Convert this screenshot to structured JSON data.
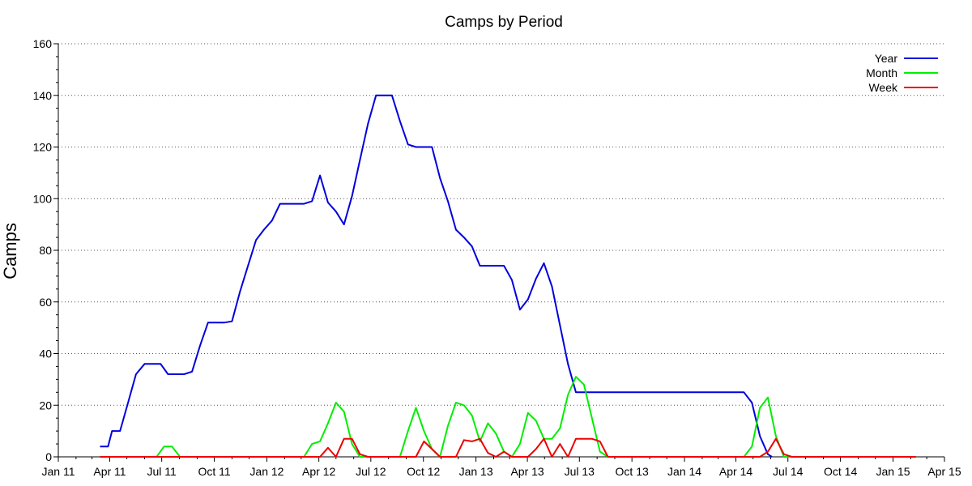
{
  "chart_data": {
    "type": "line",
    "title": "Camps by Period",
    "xlabel": "",
    "ylabel": "Camps",
    "x_axis": {
      "type": "date",
      "range": [
        "2011-01-01",
        "2015-04-01"
      ],
      "tick_dates": [
        "2011-01-01",
        "2011-04-01",
        "2011-07-01",
        "2011-10-01",
        "2012-01-01",
        "2012-04-01",
        "2012-07-01",
        "2012-10-01",
        "2013-01-01",
        "2013-04-01",
        "2013-07-01",
        "2013-10-01",
        "2014-01-01",
        "2014-04-01",
        "2014-07-01",
        "2014-10-01",
        "2015-01-01",
        "2015-04-01"
      ],
      "tick_labels": [
        "Jan 11",
        "Apr 11",
        "Jul 11",
        "Oct 11",
        "Jan 12",
        "Apr 12",
        "Jul 12",
        "Oct 12",
        "Jan 13",
        "Apr 13",
        "Jul 13",
        "Oct 13",
        "Jan 14",
        "Apr 14",
        "Jul 14",
        "Oct 14",
        "Jan 15",
        "Apr 15"
      ]
    },
    "ylim": [
      0,
      160
    ],
    "y_ticks": [
      0,
      20,
      40,
      60,
      80,
      100,
      120,
      140,
      160
    ],
    "grid": "horizontal dotted",
    "legend_position": "top-right",
    "series": [
      {
        "name": "Year",
        "color": "#0000dd",
        "points": [
          [
            "2011-03-15",
            4
          ],
          [
            "2011-03-29",
            4
          ],
          [
            "2011-04-05",
            10
          ],
          [
            "2011-04-19",
            10
          ],
          [
            "2011-05-03",
            21
          ],
          [
            "2011-05-17",
            32
          ],
          [
            "2011-06-01",
            36
          ],
          [
            "2011-06-15",
            36
          ],
          [
            "2011-06-29",
            36
          ],
          [
            "2011-07-12",
            32
          ],
          [
            "2011-07-26",
            32
          ],
          [
            "2011-08-09",
            32
          ],
          [
            "2011-08-23",
            33
          ],
          [
            "2011-09-06",
            43
          ],
          [
            "2011-09-20",
            52
          ],
          [
            "2011-10-04",
            52
          ],
          [
            "2011-10-18",
            52
          ],
          [
            "2011-11-01",
            52.5
          ],
          [
            "2011-11-15",
            64
          ],
          [
            "2011-11-29",
            74
          ],
          [
            "2011-12-13",
            84
          ],
          [
            "2011-12-27",
            88
          ],
          [
            "2012-01-10",
            91.5
          ],
          [
            "2012-01-24",
            98
          ],
          [
            "2012-02-07",
            98
          ],
          [
            "2012-02-21",
            98
          ],
          [
            "2012-03-06",
            98
          ],
          [
            "2012-03-20",
            99
          ],
          [
            "2012-04-03",
            109
          ],
          [
            "2012-04-17",
            98.5
          ],
          [
            "2012-05-01",
            95
          ],
          [
            "2012-05-15",
            90
          ],
          [
            "2012-05-29",
            101
          ],
          [
            "2012-06-12",
            115
          ],
          [
            "2012-06-26",
            129
          ],
          [
            "2012-07-10",
            140
          ],
          [
            "2012-07-24",
            140
          ],
          [
            "2012-08-07",
            140
          ],
          [
            "2012-08-21",
            130
          ],
          [
            "2012-09-04",
            121
          ],
          [
            "2012-09-18",
            120
          ],
          [
            "2012-10-02",
            120
          ],
          [
            "2012-10-16",
            120
          ],
          [
            "2012-10-30",
            108
          ],
          [
            "2012-11-13",
            99
          ],
          [
            "2012-11-27",
            88
          ],
          [
            "2012-12-11",
            85
          ],
          [
            "2012-12-25",
            81.5
          ],
          [
            "2013-01-08",
            74
          ],
          [
            "2013-01-22",
            74
          ],
          [
            "2013-02-05",
            74
          ],
          [
            "2013-02-19",
            74
          ],
          [
            "2013-03-05",
            68.5
          ],
          [
            "2013-03-19",
            57
          ],
          [
            "2013-04-02",
            61
          ],
          [
            "2013-04-16",
            69
          ],
          [
            "2013-04-30",
            75
          ],
          [
            "2013-05-14",
            66
          ],
          [
            "2013-05-28",
            51
          ],
          [
            "2013-06-11",
            36
          ],
          [
            "2013-06-25",
            25
          ],
          [
            "2013-07-09",
            25
          ],
          [
            "2013-07-23",
            25
          ],
          [
            "2013-08-06",
            25
          ],
          [
            "2013-08-20",
            25
          ],
          [
            "2013-09-03",
            25
          ],
          [
            "2013-09-17",
            25
          ],
          [
            "2013-10-01",
            25
          ],
          [
            "2013-10-15",
            25
          ],
          [
            "2013-10-29",
            25
          ],
          [
            "2013-11-12",
            25
          ],
          [
            "2013-11-26",
            25
          ],
          [
            "2013-12-10",
            25
          ],
          [
            "2013-12-24",
            25
          ],
          [
            "2014-01-07",
            25
          ],
          [
            "2014-01-21",
            25
          ],
          [
            "2014-02-04",
            25
          ],
          [
            "2014-02-18",
            25
          ],
          [
            "2014-03-04",
            25
          ],
          [
            "2014-03-18",
            25
          ],
          [
            "2014-04-01",
            25
          ],
          [
            "2014-04-15",
            25
          ],
          [
            "2014-04-29",
            21
          ],
          [
            "2014-05-13",
            8
          ],
          [
            "2014-05-27",
            1
          ],
          [
            "2014-06-03",
            0
          ]
        ]
      },
      {
        "name": "Month",
        "color": "#00ee00",
        "points": [
          [
            "2011-03-15",
            0
          ],
          [
            "2011-04-15",
            0
          ],
          [
            "2011-05-15",
            0
          ],
          [
            "2011-06-10",
            0
          ],
          [
            "2011-06-22",
            0
          ],
          [
            "2011-07-05",
            4
          ],
          [
            "2011-07-19",
            4
          ],
          [
            "2011-08-02",
            0
          ],
          [
            "2011-08-16",
            0
          ],
          [
            "2011-09-15",
            0
          ],
          [
            "2011-10-15",
            0
          ],
          [
            "2011-11-15",
            0
          ],
          [
            "2011-12-15",
            0
          ],
          [
            "2012-01-15",
            0
          ],
          [
            "2012-02-15",
            0
          ],
          [
            "2012-03-06",
            0
          ],
          [
            "2012-03-20",
            5
          ],
          [
            "2012-04-03",
            6
          ],
          [
            "2012-04-17",
            13
          ],
          [
            "2012-05-01",
            21
          ],
          [
            "2012-05-15",
            17.5
          ],
          [
            "2012-05-29",
            5
          ],
          [
            "2012-06-12",
            0
          ],
          [
            "2012-07-15",
            0
          ],
          [
            "2012-08-07",
            0
          ],
          [
            "2012-08-21",
            0
          ],
          [
            "2012-09-04",
            10
          ],
          [
            "2012-09-18",
            19
          ],
          [
            "2012-10-02",
            10
          ],
          [
            "2012-10-16",
            3
          ],
          [
            "2012-10-30",
            0
          ],
          [
            "2012-11-13",
            12
          ],
          [
            "2012-11-27",
            21
          ],
          [
            "2012-12-11",
            20
          ],
          [
            "2012-12-25",
            16
          ],
          [
            "2013-01-08",
            6
          ],
          [
            "2013-01-22",
            13
          ],
          [
            "2013-02-05",
            9
          ],
          [
            "2013-02-19",
            2
          ],
          [
            "2013-03-05",
            0
          ],
          [
            "2013-03-19",
            5
          ],
          [
            "2013-04-02",
            17
          ],
          [
            "2013-04-16",
            14
          ],
          [
            "2013-04-30",
            7
          ],
          [
            "2013-05-14",
            7
          ],
          [
            "2013-05-28",
            11
          ],
          [
            "2013-06-11",
            24
          ],
          [
            "2013-06-25",
            31
          ],
          [
            "2013-07-09",
            28
          ],
          [
            "2013-07-23",
            15
          ],
          [
            "2013-08-06",
            2
          ],
          [
            "2013-08-20",
            0
          ],
          [
            "2013-09-15",
            0
          ],
          [
            "2013-10-15",
            0
          ],
          [
            "2013-11-15",
            0
          ],
          [
            "2013-12-15",
            0
          ],
          [
            "2014-01-15",
            0
          ],
          [
            "2014-02-15",
            0
          ],
          [
            "2014-03-15",
            0
          ],
          [
            "2014-04-15",
            0
          ],
          [
            "2014-04-29",
            4
          ],
          [
            "2014-05-13",
            19
          ],
          [
            "2014-05-27",
            23
          ],
          [
            "2014-06-10",
            8
          ],
          [
            "2014-06-24",
            0
          ],
          [
            "2014-07-15",
            0
          ],
          [
            "2014-08-15",
            0
          ],
          [
            "2014-09-15",
            0
          ],
          [
            "2014-10-15",
            0
          ],
          [
            "2014-11-15",
            0
          ],
          [
            "2014-12-15",
            0
          ],
          [
            "2015-01-15",
            0
          ],
          [
            "2015-02-10",
            0
          ]
        ]
      },
      {
        "name": "Week",
        "color": "#ee0000",
        "points": [
          [
            "2011-03-15",
            0
          ],
          [
            "2011-06-15",
            0
          ],
          [
            "2011-09-15",
            0
          ],
          [
            "2011-12-15",
            0
          ],
          [
            "2012-03-20",
            0
          ],
          [
            "2012-04-03",
            0
          ],
          [
            "2012-04-17",
            3.5
          ],
          [
            "2012-05-01",
            0
          ],
          [
            "2012-05-15",
            7
          ],
          [
            "2012-05-29",
            7
          ],
          [
            "2012-06-12",
            1
          ],
          [
            "2012-06-26",
            0
          ],
          [
            "2012-08-07",
            0
          ],
          [
            "2012-08-21",
            0
          ],
          [
            "2012-09-04",
            0
          ],
          [
            "2012-09-18",
            0
          ],
          [
            "2012-10-02",
            6
          ],
          [
            "2012-10-16",
            3
          ],
          [
            "2012-10-30",
            0
          ],
          [
            "2012-11-13",
            0
          ],
          [
            "2012-11-27",
            0
          ],
          [
            "2012-12-11",
            6.5
          ],
          [
            "2012-12-25",
            6
          ],
          [
            "2013-01-08",
            7
          ],
          [
            "2013-01-22",
            1.5
          ],
          [
            "2013-02-05",
            0
          ],
          [
            "2013-02-19",
            2
          ],
          [
            "2013-03-05",
            0
          ],
          [
            "2013-03-19",
            0
          ],
          [
            "2013-04-02",
            0
          ],
          [
            "2013-04-16",
            3
          ],
          [
            "2013-04-30",
            7
          ],
          [
            "2013-05-14",
            0
          ],
          [
            "2013-05-28",
            5
          ],
          [
            "2013-06-11",
            0
          ],
          [
            "2013-06-25",
            7
          ],
          [
            "2013-07-09",
            7
          ],
          [
            "2013-07-23",
            7
          ],
          [
            "2013-08-06",
            6
          ],
          [
            "2013-08-20",
            0
          ],
          [
            "2013-10-15",
            0
          ],
          [
            "2014-01-15",
            0
          ],
          [
            "2014-04-15",
            0
          ],
          [
            "2014-05-13",
            0
          ],
          [
            "2014-05-27",
            2
          ],
          [
            "2014-06-10",
            7
          ],
          [
            "2014-06-24",
            1
          ],
          [
            "2014-07-08",
            0
          ],
          [
            "2014-08-15",
            0
          ],
          [
            "2014-10-15",
            0
          ],
          [
            "2014-12-15",
            0
          ],
          [
            "2015-02-10",
            0
          ]
        ]
      }
    ]
  }
}
